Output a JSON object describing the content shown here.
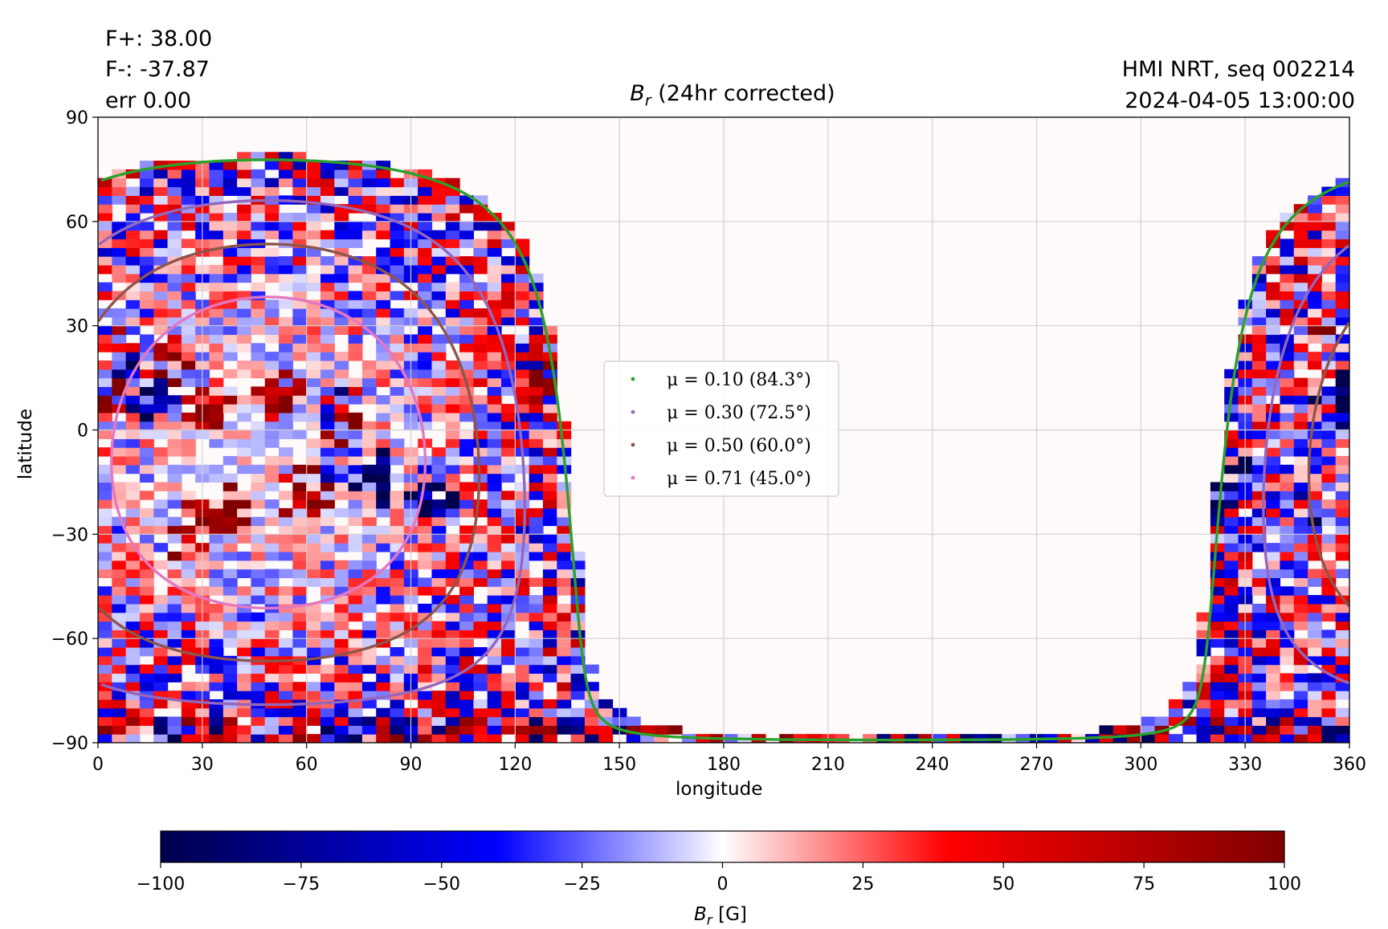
{
  "header": {
    "flux_pos": "F+: 38.00",
    "flux_neg": "F-: -37.87",
    "err": "err 0.00",
    "instrument": "HMI NRT, seq 002214",
    "datetime": "2024-04-05 13:00:00"
  },
  "chart_data": {
    "type": "heatmap",
    "title_symbol": "B",
    "title_subscript": "r",
    "title_suffix": " (24hr corrected)",
    "xlabel": "longitude",
    "ylabel": "latitude",
    "xlim": [
      0,
      360
    ],
    "ylim": [
      -90,
      90
    ],
    "x_ticks": [
      0,
      30,
      60,
      90,
      120,
      150,
      180,
      210,
      240,
      270,
      300,
      330,
      360
    ],
    "y_ticks": [
      90,
      60,
      30,
      0,
      -30,
      -60,
      -90
    ],
    "y_tick_labels": [
      "90",
      "60",
      "30",
      "0",
      "−30",
      "−60",
      "−90"
    ],
    "grid": true,
    "colorbar": {
      "label_symbol": "B",
      "label_subscript": "r",
      "label_suffix": " [G]",
      "range": [
        -100,
        100
      ],
      "ticks": [
        -100,
        -75,
        -50,
        -25,
        0,
        25,
        50,
        75,
        100
      ],
      "tick_labels": [
        "−100",
        "−75",
        "−50",
        "−25",
        "0",
        "25",
        "50",
        "75",
        "100"
      ],
      "colormap": "seismic"
    },
    "disk_center": {
      "longitude": 49,
      "latitude": -6.5
    },
    "legend_position": "center",
    "series": [
      {
        "name": "μ = 0.10 (84.3°)",
        "mu": 0.1,
        "angle_deg": 84.3,
        "color": "#2ca02c"
      },
      {
        "name": "μ = 0.30 (72.5°)",
        "mu": 0.3,
        "angle_deg": 72.5,
        "color": "#9467bd"
      },
      {
        "name": "μ = 0.50 (60.0°)",
        "mu": 0.5,
        "angle_deg": 60.0,
        "color": "#8c564b"
      },
      {
        "name": "μ = 0.71 (45.0°)",
        "mu": 0.71,
        "angle_deg": 45.0,
        "color": "#e377c2"
      }
    ],
    "active_regions": [
      {
        "lon": 20,
        "lat": 18,
        "polarity": "positive",
        "strength": 1.0
      },
      {
        "lon": 32,
        "lat": 8,
        "polarity": "positive",
        "strength": 0.8
      },
      {
        "lon": 14,
        "lat": 6,
        "polarity": "negative",
        "strength": 0.9
      },
      {
        "lon": 50,
        "lat": 11,
        "polarity": "positive",
        "strength": 0.8
      },
      {
        "lon": 70,
        "lat": 5,
        "polarity": "positive",
        "strength": 0.9
      },
      {
        "lon": 66,
        "lat": 7,
        "polarity": "negative",
        "strength": 0.6
      },
      {
        "lon": 36,
        "lat": -23,
        "polarity": "positive",
        "strength": 1.0
      },
      {
        "lon": 60,
        "lat": -18,
        "polarity": "positive",
        "strength": 1.0
      },
      {
        "lon": 25,
        "lat": -28,
        "polarity": "positive",
        "strength": 0.7
      },
      {
        "lon": 82,
        "lat": -15,
        "polarity": "negative",
        "strength": 1.0
      },
      {
        "lon": 95,
        "lat": -18,
        "polarity": "negative",
        "strength": 0.9
      },
      {
        "lon": 71,
        "lat": -11,
        "polarity": "negative",
        "strength": 0.6
      },
      {
        "lon": 128,
        "lat": 14,
        "polarity": "positive",
        "strength": 1.0
      },
      {
        "lon": 4,
        "lat": 8,
        "polarity": "positive",
        "strength": 1.0
      },
      {
        "lon": 6,
        "lat": 22,
        "polarity": "negative",
        "strength": 0.9
      },
      {
        "lon": 5,
        "lat": 24,
        "polarity": "positive",
        "strength": 0.7
      },
      {
        "lon": 325,
        "lat": -16,
        "polarity": "negative",
        "strength": 1.0
      },
      {
        "lon": 357,
        "lat": 8,
        "polarity": "negative",
        "strength": 0.9
      },
      {
        "lon": 345,
        "lat": -25,
        "polarity": "negative",
        "strength": 0.8
      },
      {
        "lon": 352,
        "lat": 30,
        "polarity": "positive",
        "strength": 0.5
      }
    ]
  }
}
